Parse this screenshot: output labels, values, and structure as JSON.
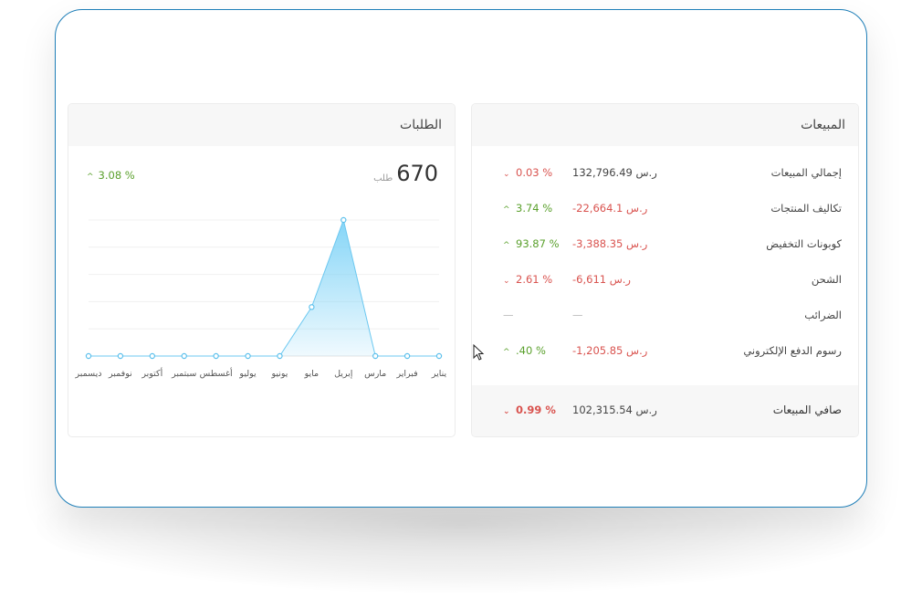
{
  "colors": {
    "frame_border": "#1f7fb8",
    "negative": "#d9534f",
    "positive": "#5aa02c",
    "area": "#7fd3f7"
  },
  "sales": {
    "title": "المبيعات",
    "rows": [
      {
        "label": "إجمالي المبيعات",
        "amount": "132,796.49 ر.س",
        "amount_tone": "neutral",
        "change": "0.03 %",
        "direction": "down"
      },
      {
        "label": "تكاليف المنتجات",
        "amount": "-22,664.1 ر.س",
        "amount_tone": "neg",
        "change": "3.74 %",
        "direction": "up"
      },
      {
        "label": "كوبونات التخفيض",
        "amount": "-3,388.35 ر.س",
        "amount_tone": "neg",
        "change": "93.87 %",
        "direction": "up"
      },
      {
        "label": "الشحن",
        "amount": "-6,611 ر.س",
        "amount_tone": "neg",
        "change": "2.61 %",
        "direction": "down"
      },
      {
        "label": "الضرائب",
        "amount": "—",
        "amount_tone": "dash",
        "change": "—",
        "direction": "none"
      },
      {
        "label": "رسوم الدفع الإلكتروني",
        "amount": "-1,205.85 ر.س",
        "amount_tone": "neg",
        "change": ".40 %",
        "direction": "up"
      }
    ],
    "net": {
      "label": "صافي المبيعات",
      "amount": "102,315.54 ر.س",
      "change": "0.99 %",
      "direction": "down"
    }
  },
  "orders": {
    "title": "الطلبات",
    "count": "670",
    "unit": "طلب",
    "change": "3.08 %",
    "direction": "up"
  },
  "chart_data": {
    "type": "area",
    "categories": [
      "يناير",
      "فبراير",
      "مارس",
      "إبريل",
      "مايو",
      "يونيو",
      "يوليو",
      "أغسطس",
      "سبتمبر",
      "أكتوبر",
      "نوفمبر",
      "ديسمبر"
    ],
    "values": [
      0,
      0,
      0,
      5,
      1.8,
      0,
      0,
      0,
      0,
      0,
      0,
      0
    ],
    "ylim": [
      0,
      5
    ],
    "grid": true,
    "xlabel": "",
    "ylabel": "",
    "title": ""
  }
}
